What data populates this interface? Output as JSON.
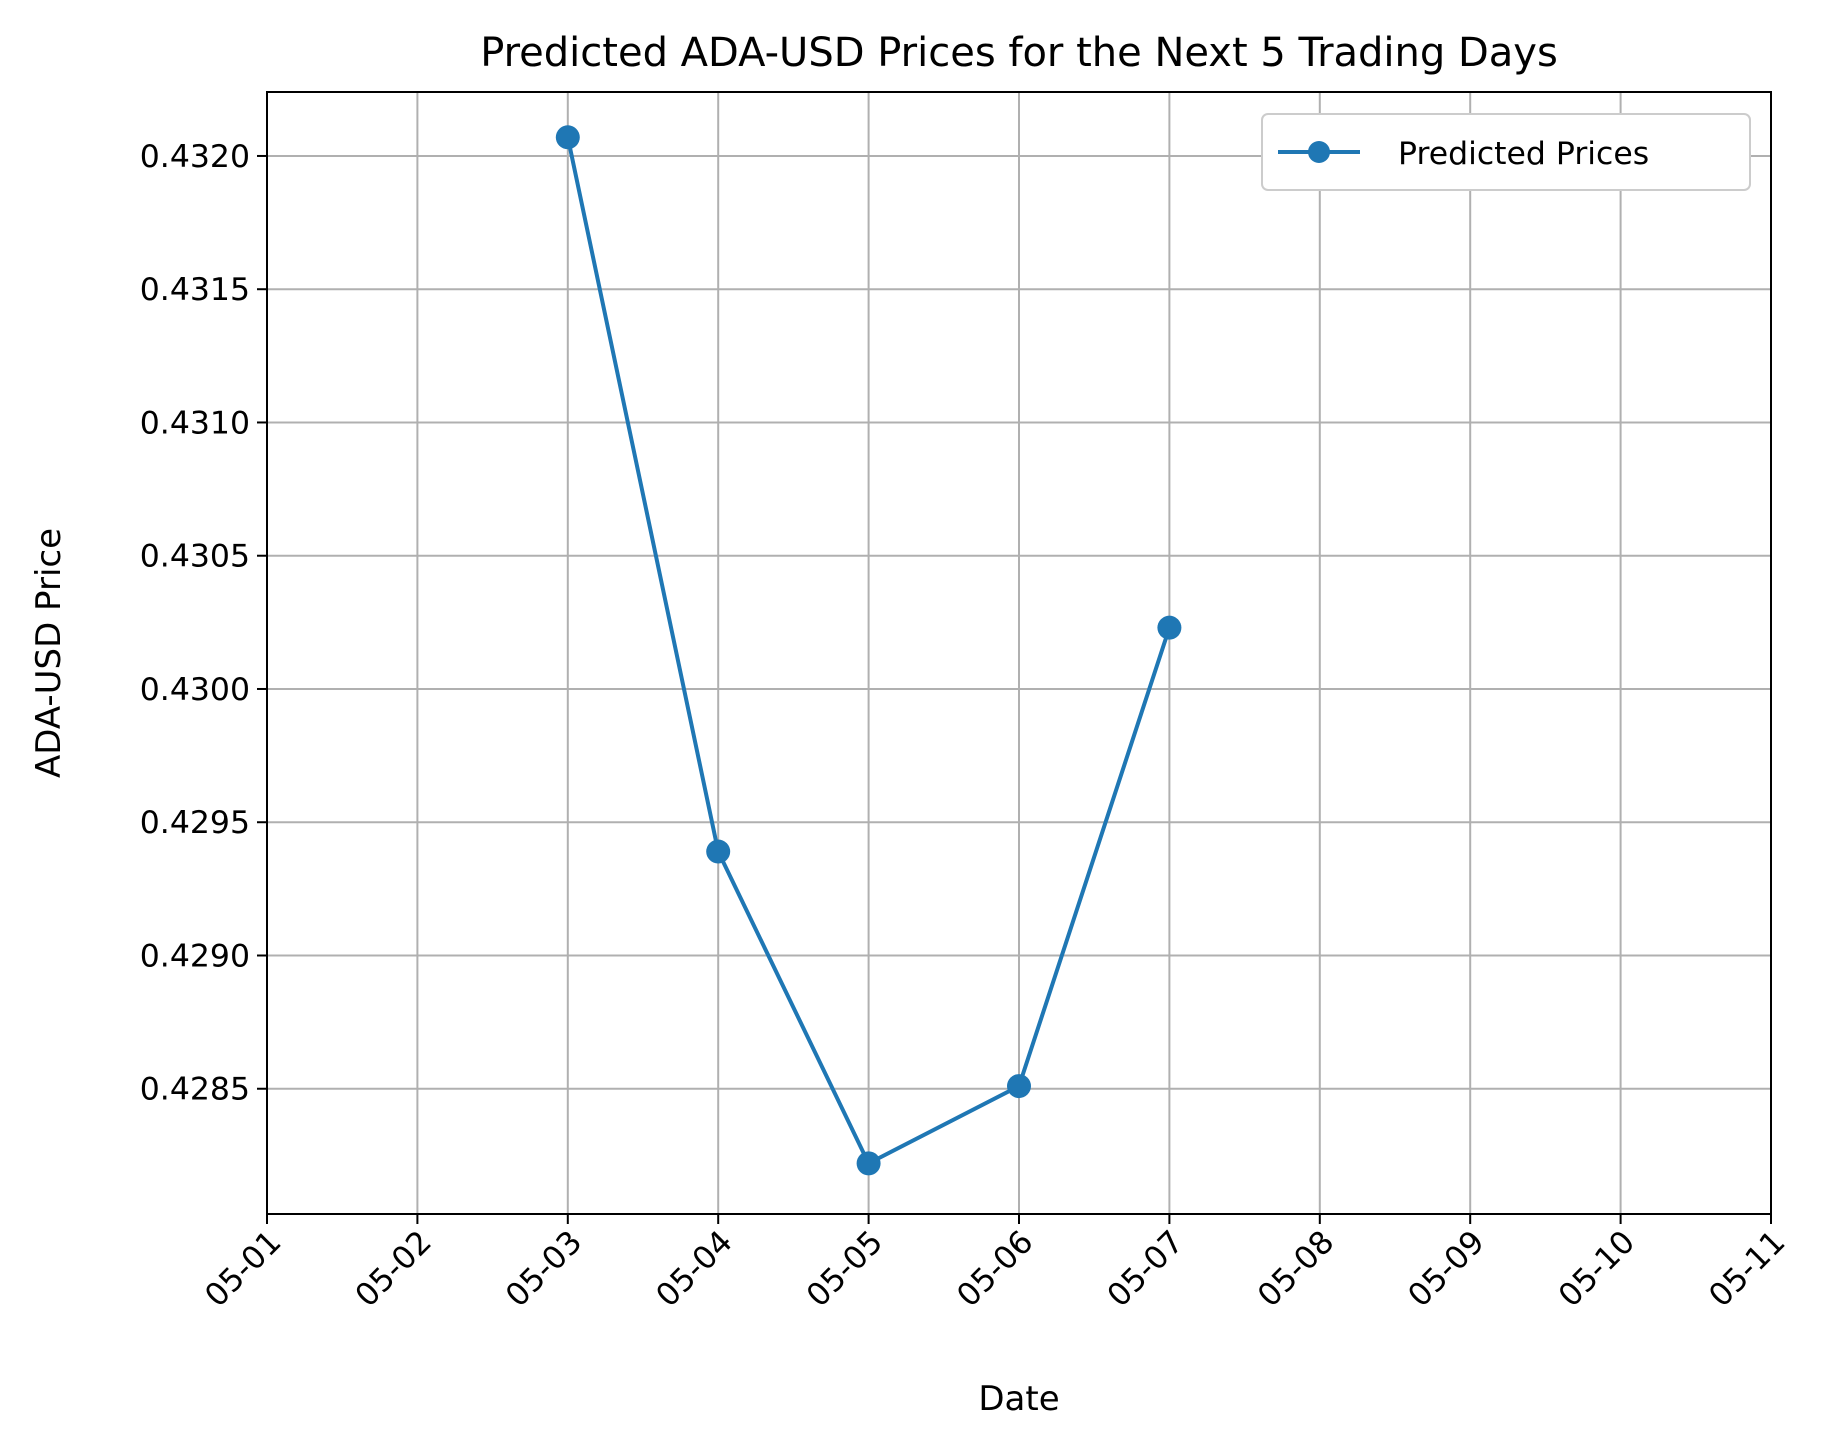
{
  "chart_data": {
    "type": "line",
    "title": "Predicted ADA-USD Prices for the Next 5 Trading Days",
    "xlabel": "Date",
    "ylabel": "ADA-USD Price",
    "x_ticks": [
      "05-01",
      "05-02",
      "05-03",
      "05-04",
      "05-05",
      "05-06",
      "05-07",
      "05-08",
      "05-09",
      "05-10",
      "05-11"
    ],
    "xlim": [
      "05-01",
      "05-11"
    ],
    "y_ticks": [
      "0.4285",
      "0.4290",
      "0.4295",
      "0.4300",
      "0.4305",
      "0.4310",
      "0.4315",
      "0.4320"
    ],
    "ylim": [
      0.42803,
      0.43224
    ],
    "grid": true,
    "legend_position": "top-right",
    "series": [
      {
        "name": "Predicted Prices",
        "color": "#1f77b4",
        "marker": "circle",
        "x": [
          "05-03",
          "05-04",
          "05-05",
          "05-06",
          "05-07"
        ],
        "values": [
          0.43207,
          0.42939,
          0.42822,
          0.42851,
          0.43023
        ]
      }
    ]
  },
  "colors": {
    "series": "#1f77b4",
    "grid": "#b0b0b0",
    "axes": "#000000"
  }
}
